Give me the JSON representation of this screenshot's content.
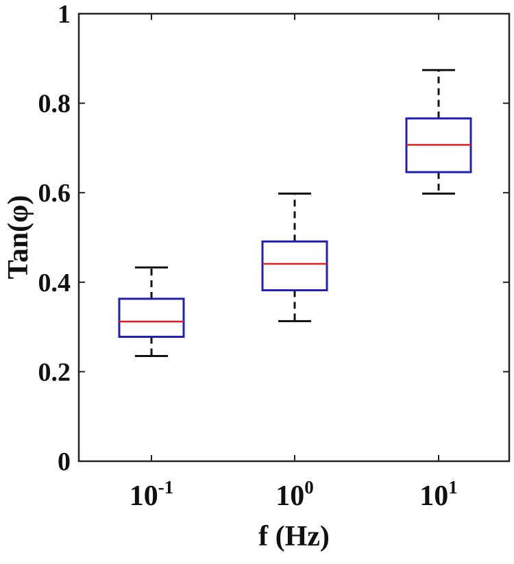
{
  "chart_data": {
    "type": "box",
    "xlabel": "f (Hz)",
    "ylabel": "Tan(φ)",
    "ylim": [
      0,
      1
    ],
    "yticks": [
      "0",
      "0.2",
      "0.4",
      "0.6",
      "0.8",
      "1"
    ],
    "ytick_values": [
      0,
      0.2,
      0.4,
      0.6,
      0.8,
      1
    ],
    "categories": [
      {
        "base": "10",
        "exp": "-1"
      },
      {
        "base": "10",
        "exp": "0"
      },
      {
        "base": "10",
        "exp": "1"
      }
    ],
    "boxes": [
      {
        "whisker_low": 0.235,
        "q1": 0.278,
        "median": 0.312,
        "q3": 0.363,
        "whisker_high": 0.433
      },
      {
        "whisker_low": 0.313,
        "q1": 0.382,
        "median": 0.441,
        "q3": 0.491,
        "whisker_high": 0.598
      },
      {
        "whisker_low": 0.598,
        "q1": 0.646,
        "median": 0.707,
        "q3": 0.766,
        "whisker_high": 0.874
      }
    ],
    "grid": false,
    "colors": {
      "box": "#1f1fb4",
      "median": "#e02020",
      "whisker": "#111111",
      "axis": "#222222"
    }
  }
}
